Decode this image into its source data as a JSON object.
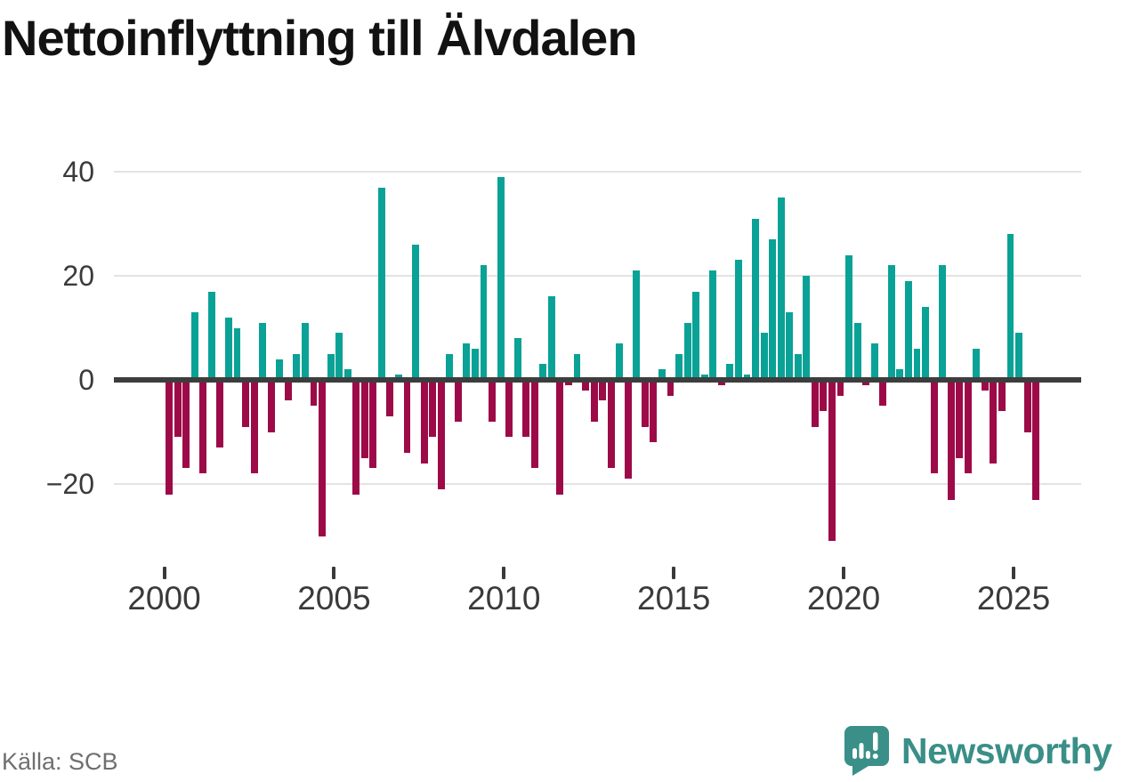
{
  "title": "Nettoinflyttning till Älvdalen",
  "source": "Källa: SCB",
  "brand": {
    "name": "Newsworthy"
  },
  "colors": {
    "positive": "#0aa296",
    "negative": "#9d0a48",
    "zero_line": "#3d3d3d",
    "gridline": "#e3e3e3",
    "axis_text": "#3a3a3a",
    "title_text": "#121212",
    "source_text": "#6f6f6f",
    "brand_teal": "#3a8f88"
  },
  "chart_data": {
    "type": "bar",
    "title": "Nettoinflyttning till Älvdalen",
    "frequency": "quarterly",
    "x_start": "2000Q1",
    "x_end": "2025Q3",
    "x_tick_labels": [
      "2000",
      "2005",
      "2010",
      "2015",
      "2020",
      "2025"
    ],
    "y_ticks": [
      40,
      20,
      0,
      -20
    ],
    "ylim": [
      -35,
      45
    ],
    "grid": "horizontal",
    "legend": "none",
    "positive_color": "#0aa296",
    "negative_color": "#9d0a48",
    "values_by_year": {
      "2000": [
        -22,
        -11,
        -17,
        13
      ],
      "2001": [
        -18,
        17,
        -13,
        12
      ],
      "2002": [
        10,
        -9,
        -18,
        11
      ],
      "2003": [
        -10,
        4,
        -4,
        5
      ],
      "2004": [
        11,
        -5,
        -30,
        5
      ],
      "2005": [
        9,
        2,
        -22,
        -15
      ],
      "2006": [
        -17,
        37,
        -7,
        1
      ],
      "2007": [
        -14,
        26,
        -16,
        -11
      ],
      "2008": [
        -21,
        5,
        -8,
        7
      ],
      "2009": [
        6,
        22,
        -8,
        39
      ],
      "2010": [
        -11,
        8,
        -11,
        -17
      ],
      "2011": [
        3,
        16,
        -22,
        -1
      ],
      "2012": [
        5,
        -2,
        -8,
        -4
      ],
      "2013": [
        -17,
        7,
        -19,
        21
      ],
      "2014": [
        -9,
        -12,
        2,
        -3
      ],
      "2015": [
        5,
        11,
        17,
        1
      ],
      "2016": [
        21,
        -1,
        3,
        23
      ],
      "2017": [
        1,
        31,
        9,
        27
      ],
      "2018": [
        35,
        13,
        5,
        20
      ],
      "2019": [
        -9,
        -6,
        -31,
        -3
      ],
      "2020": [
        24,
        11,
        -1,
        7
      ],
      "2021": [
        -5,
        22,
        2,
        19
      ],
      "2022": [
        6,
        14,
        -18,
        22
      ],
      "2023": [
        -23,
        -15,
        -18,
        6
      ],
      "2024": [
        -2,
        -16,
        -6,
        28
      ],
      "2025": [
        9,
        -10,
        -23
      ]
    }
  }
}
